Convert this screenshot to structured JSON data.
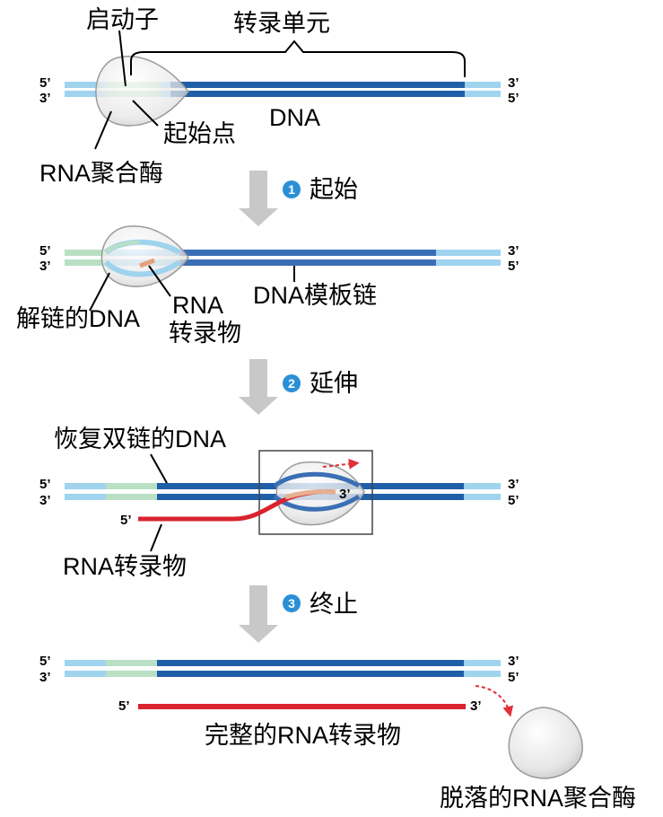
{
  "labels": {
    "promoter": "启动子",
    "transcription_unit": "转录单元",
    "start_site": "起始点",
    "dna": "DNA",
    "rna_polymerase": "RNA聚合酶",
    "unwound_dna_a": "解链的DNA",
    "rna_transcript_line1": "RNA",
    "rna_transcript_line2": "转录物",
    "template_strand": "DNA模板链",
    "rewound_dna": "恢复双链的DNA",
    "rna_transcript": "RNA转录物",
    "complete_transcript": "完整的RNA转录物",
    "released_polymerase": "脱落的RNA聚合酶"
  },
  "steps": [
    {
      "number": "1",
      "label": "起始"
    },
    {
      "number": "2",
      "label": "延伸"
    },
    {
      "number": "3",
      "label": "终止"
    }
  ],
  "strand_ends": {
    "five": "5’",
    "three": "3’"
  },
  "colors": {
    "dna_dark": "#1f5fa8",
    "dna_light": "#9fd3ee",
    "promoter": "#b9e0c4",
    "rna": "#d9232f",
    "arrow_gray": "#c8c8c8",
    "step_badge": "#2a8fd6"
  }
}
